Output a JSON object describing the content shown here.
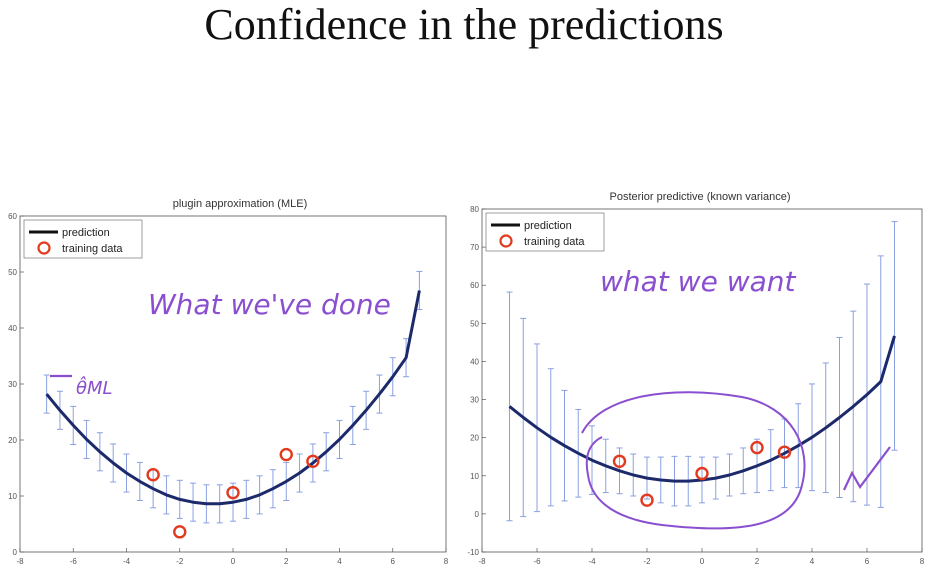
{
  "slide": {
    "title": "Confidence in the predictions"
  },
  "colors": {
    "curve": "#1c2a6b",
    "errorbar": "#8aa0e0",
    "marker": "#e23a1e",
    "ink": "#8a4fcf",
    "axis": "#555555"
  },
  "chart_data": [
    {
      "type": "line",
      "title": "plugin approximation (MLE)",
      "xlim": [
        -8,
        8
      ],
      "ylim": [
        0,
        60
      ],
      "xticks": [
        -8,
        -6,
        -4,
        -2,
        0,
        2,
        4,
        6,
        8
      ],
      "yticks": [
        0,
        10,
        20,
        30,
        40,
        50,
        60
      ],
      "legend": {
        "position": "top-left",
        "entries": [
          "prediction",
          "training data"
        ]
      },
      "series": [
        {
          "name": "prediction",
          "kind": "line",
          "x": [
            -7,
            -6.5,
            -6,
            -5.5,
            -5,
            -4.5,
            -4,
            -3.5,
            -3,
            -2.5,
            -2,
            -1.5,
            -1,
            -0.5,
            0,
            0.5,
            1,
            1.5,
            2,
            2.5,
            3,
            3.5,
            4,
            4.5,
            5,
            5.5,
            6,
            6.5,
            7
          ],
          "y": [
            28.2,
            25.3,
            22.6,
            20.1,
            17.9,
            15.9,
            14.1,
            12.6,
            11.3,
            10.2,
            9.4,
            8.9,
            8.6,
            8.6,
            8.9,
            9.4,
            10.2,
            11.3,
            12.6,
            14.1,
            15.9,
            17.9,
            20.1,
            22.6,
            25.3,
            28.2,
            31.3,
            34.7,
            46.7
          ],
          "error": [
            3.4,
            3.4,
            3.4,
            3.4,
            3.4,
            3.4,
            3.4,
            3.4,
            3.4,
            3.4,
            3.4,
            3.4,
            3.4,
            3.4,
            3.4,
            3.4,
            3.4,
            3.4,
            3.4,
            3.4,
            3.4,
            3.4,
            3.4,
            3.4,
            3.4,
            3.4,
            3.4,
            3.4,
            3.4
          ]
        },
        {
          "name": "training data",
          "kind": "scatter",
          "x": [
            -3,
            -2,
            0,
            2,
            3
          ],
          "y": [
            13.8,
            3.6,
            10.6,
            17.4,
            16.2
          ]
        }
      ]
    },
    {
      "type": "line",
      "title": "Posterior predictive (known variance)",
      "xlim": [
        -8,
        8
      ],
      "ylim": [
        -10,
        80
      ],
      "xticks": [
        -8,
        -6,
        -4,
        -2,
        0,
        2,
        4,
        6,
        8
      ],
      "yticks": [
        -10,
        0,
        10,
        20,
        30,
        40,
        50,
        60,
        70,
        80
      ],
      "legend": {
        "position": "top-left",
        "entries": [
          "prediction",
          "training data"
        ]
      },
      "series": [
        {
          "name": "prediction",
          "kind": "line",
          "x": [
            -7,
            -6.5,
            -6,
            -5.5,
            -5,
            -4.5,
            -4,
            -3.5,
            -3,
            -2.5,
            -2,
            -1.5,
            -1,
            -0.5,
            0,
            0.5,
            1,
            1.5,
            2,
            2.5,
            3,
            3.5,
            4,
            4.5,
            5,
            5.5,
            6,
            6.5,
            7
          ],
          "y": [
            28.2,
            25.3,
            22.6,
            20.1,
            17.9,
            15.9,
            14.1,
            12.6,
            11.3,
            10.2,
            9.4,
            8.9,
            8.6,
            8.6,
            8.9,
            9.4,
            10.2,
            11.3,
            12.6,
            14.1,
            15.9,
            17.9,
            20.1,
            22.6,
            25.3,
            28.2,
            31.3,
            34.7,
            46.7
          ],
          "error": [
            30,
            26,
            22,
            18,
            14.5,
            11.5,
            9,
            7,
            6,
            5.5,
            5.5,
            6,
            6.5,
            6.5,
            6,
            5.5,
            5.5,
            6,
            7,
            8,
            9,
            11,
            14,
            17,
            21,
            25,
            29,
            33,
            30
          ]
        },
        {
          "name": "training data",
          "kind": "scatter",
          "x": [
            -3,
            -2,
            0,
            2,
            3
          ],
          "y": [
            13.8,
            3.6,
            10.6,
            17.4,
            16.2
          ]
        }
      ]
    }
  ],
  "annotations": {
    "left_note": "What we've done",
    "left_symbol": "θ̂ML",
    "right_note": "what we want"
  }
}
